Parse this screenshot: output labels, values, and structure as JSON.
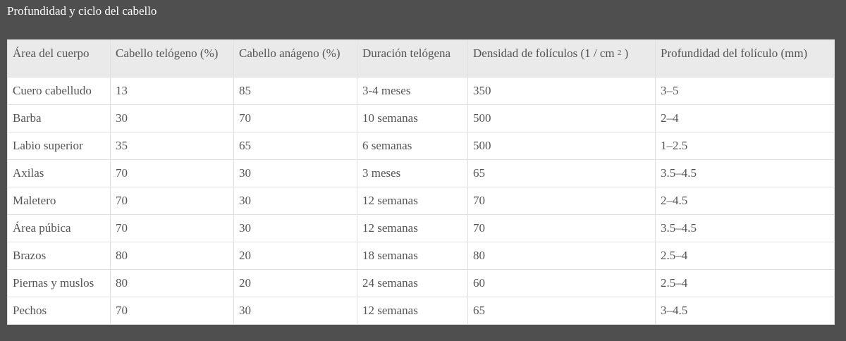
{
  "page": {
    "title": "Profundidad y ciclo del cabello"
  },
  "table": {
    "headers": [
      "Área del cuerpo",
      "Cabello telógeno (%)",
      "Cabello anágeno (%)",
      "Duración telógena",
      "Densidad de folículos (1 / cm",
      "Profundidad del folículo (mm)"
    ],
    "density_header_sup": "2",
    "density_header_suffix": ")",
    "rows": [
      [
        "Cuero cabelludo",
        "13",
        "85",
        "3-4 meses",
        "350",
        "3–5"
      ],
      [
        "Barba",
        "30",
        "70",
        "10 semanas",
        "500",
        "2–4"
      ],
      [
        "Labio superior",
        "35",
        "65",
        "6 semanas",
        "500",
        "1–2.5"
      ],
      [
        "Axilas",
        "70",
        "30",
        "3 meses",
        "65",
        "3.5–4.5"
      ],
      [
        "Maletero",
        "70",
        "30",
        "12 semanas",
        "70",
        "2–4.5"
      ],
      [
        "Área púbica",
        "70",
        "30",
        "12 semanas",
        "70",
        "3.5–4.5"
      ],
      [
        "Brazos",
        "80",
        "20",
        "18 semanas",
        "80",
        "2.5–4"
      ],
      [
        "Piernas y muslos",
        "80",
        "20",
        "24 semanas",
        "60",
        "2.5–4"
      ],
      [
        "Pechos",
        "70",
        "30",
        "12 semanas",
        "65",
        "3–4.5"
      ]
    ]
  },
  "colors": {
    "background": "#4f4f4f",
    "header_bg": "#eaeaea",
    "cell_bg": "#ffffff",
    "text": "#555555",
    "border": "#e0e0e0"
  }
}
